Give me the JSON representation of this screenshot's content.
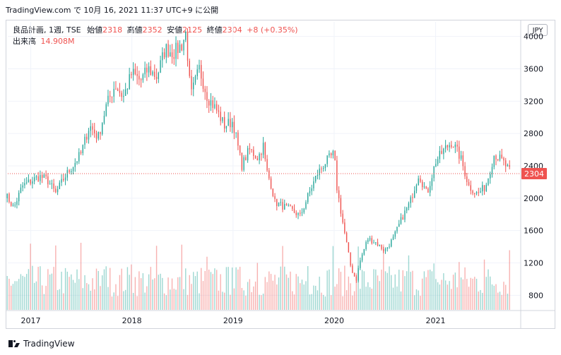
{
  "caption": "TradingView.com で 10月 16, 2021 11:37 UTC+9 に公開",
  "legend": {
    "symbol": "良品計画, 1週, TSE",
    "open_label": "始値",
    "open": "2318",
    "high_label": "高値",
    "high": "2352",
    "low_label": "安値",
    "low": "2125",
    "close_label": "終値",
    "close": "2304",
    "change": "+8 (+0.35%)",
    "volume_label": "出来高",
    "volume": "14.908M"
  },
  "currency": "JPY",
  "last_price": "2304",
  "footer_brand": "TradingView",
  "colors": {
    "up": "#26a69a",
    "down": "#ef5350",
    "grid": "#f0f3fa",
    "text": "#131722"
  },
  "chart_data": {
    "type": "candlestick",
    "interval": "1週",
    "y_ticks": [
      800,
      1200,
      1600,
      2000,
      2400,
      2800,
      3200,
      3600,
      4000
    ],
    "x_ticks": [
      "2017",
      "2018",
      "2019",
      "2020",
      "2021"
    ],
    "ylim": [
      620,
      4180
    ],
    "last_price": 2304,
    "price_path": [
      {
        "t": "2016-10",
        "p": 2050
      },
      {
        "t": "2016-11",
        "p": 1880
      },
      {
        "t": "2016-12",
        "p": 2150
      },
      {
        "t": "2017-02",
        "p": 2270
      },
      {
        "t": "2017-03",
        "p": 2230
      },
      {
        "t": "2017-04",
        "p": 2060
      },
      {
        "t": "2017-05",
        "p": 2250
      },
      {
        "t": "2017-06",
        "p": 2400
      },
      {
        "t": "2017-07",
        "p": 2550
      },
      {
        "t": "2017-08",
        "p": 2900
      },
      {
        "t": "2017-09",
        "p": 2750
      },
      {
        "t": "2017-10",
        "p": 3150
      },
      {
        "t": "2017-11",
        "p": 3400
      },
      {
        "t": "2017-12",
        "p": 3250
      },
      {
        "t": "2018-01",
        "p": 3550
      },
      {
        "t": "2018-02",
        "p": 3450
      },
      {
        "t": "2018-03",
        "p": 3600
      },
      {
        "t": "2018-04",
        "p": 3500
      },
      {
        "t": "2018-05",
        "p": 3850
      },
      {
        "t": "2018-06",
        "p": 3800
      },
      {
        "t": "2018-07",
        "p": 3900
      },
      {
        "t": "2018-07-15",
        "p": 4050
      },
      {
        "t": "2018-08",
        "p": 3250
      },
      {
        "t": "2018-09",
        "p": 3600
      },
      {
        "t": "2018-10",
        "p": 3250
      },
      {
        "t": "2018-11",
        "p": 3100
      },
      {
        "t": "2018-12",
        "p": 2900
      },
      {
        "t": "2019-01",
        "p": 2950
      },
      {
        "t": "2019-02",
        "p": 2400
      },
      {
        "t": "2019-03",
        "p": 2600
      },
      {
        "t": "2019-04",
        "p": 2500
      },
      {
        "t": "2019-04-20",
        "p": 2650
      },
      {
        "t": "2019-05",
        "p": 2350
      },
      {
        "t": "2019-05-20",
        "p": 2150
      },
      {
        "t": "2019-06",
        "p": 1950
      },
      {
        "t": "2019-07",
        "p": 1900
      },
      {
        "t": "2019-08",
        "p": 1850
      },
      {
        "t": "2019-09",
        "p": 1780
      },
      {
        "t": "2019-10",
        "p": 2050
      },
      {
        "t": "2019-11",
        "p": 2300
      },
      {
        "t": "2019-12",
        "p": 2450
      },
      {
        "t": "2020-01",
        "p": 2550
      },
      {
        "t": "2020-01-10",
        "p": 2150
      },
      {
        "t": "2020-02",
        "p": 1700
      },
      {
        "t": "2020-03",
        "p": 1150
      },
      {
        "t": "2020-03-20",
        "p": 980
      },
      {
        "t": "2020-04",
        "p": 1200
      },
      {
        "t": "2020-05",
        "p": 1500
      },
      {
        "t": "2020-06",
        "p": 1450
      },
      {
        "t": "2020-07",
        "p": 1350
      },
      {
        "t": "2020-08",
        "p": 1500
      },
      {
        "t": "2020-09",
        "p": 1750
      },
      {
        "t": "2020-10",
        "p": 1950
      },
      {
        "t": "2020-11",
        "p": 2300
      },
      {
        "t": "2020-12",
        "p": 2050
      },
      {
        "t": "2021-01",
        "p": 2450
      },
      {
        "t": "2021-02",
        "p": 2600
      },
      {
        "t": "2021-03",
        "p": 2700
      },
      {
        "t": "2021-04",
        "p": 2500
      },
      {
        "t": "2021-05",
        "p": 2150
      },
      {
        "t": "2021-06",
        "p": 2050
      },
      {
        "t": "2021-07",
        "p": 2150
      },
      {
        "t": "2021-08",
        "p": 2550
      },
      {
        "t": "2021-09",
        "p": 2450
      },
      {
        "t": "2021-10",
        "p": 2304
      }
    ],
    "volume_ylim": [
      0,
      35
    ]
  }
}
